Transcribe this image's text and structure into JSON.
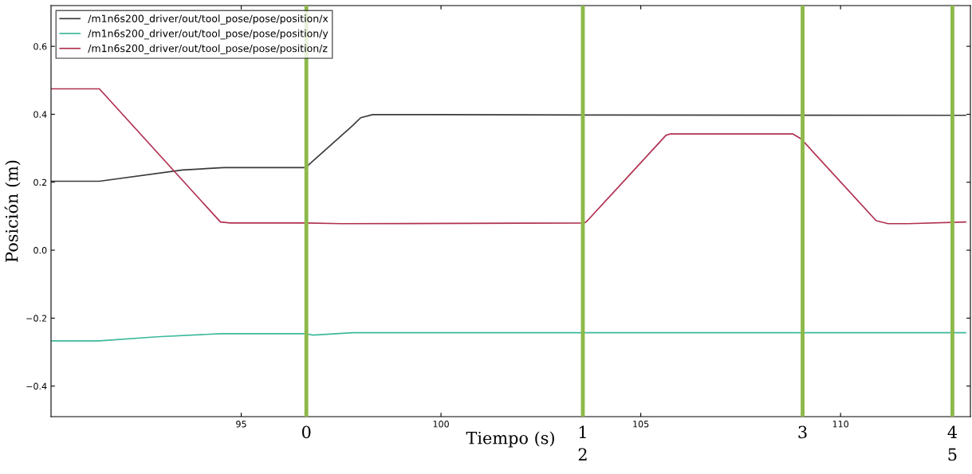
{
  "chart_data": {
    "type": "line",
    "xlabel": "Tiempo (s)",
    "ylabel": "Posición (m)",
    "xlim": [
      90.24,
      113.25
    ],
    "ylim": [
      -0.49,
      0.72
    ],
    "xticks": [
      95,
      100,
      105,
      110
    ],
    "yticks": [
      {
        "value": -0.4,
        "label": "−0.4"
      },
      {
        "value": -0.2,
        "label": "−0.2"
      },
      {
        "value": 0.0,
        "label": "0.0"
      },
      {
        "value": 0.2,
        "label": "0.2"
      },
      {
        "value": 0.4,
        "label": "0.4"
      },
      {
        "value": 0.6,
        "label": "0.6"
      }
    ],
    "legend": "top left",
    "grid": false,
    "series": [
      {
        "name": "/m1n6s200_driver/out/tool_pose/pose/position/x",
        "color": "#3a3a3a",
        "x": [
          90.26,
          91.45,
          93.53,
          94.56,
          96.61,
          97.8,
          97.99,
          98.29,
          99.88,
          103.65,
          113.13
        ],
        "values": [
          0.203,
          0.203,
          0.236,
          0.243,
          0.243,
          0.368,
          0.39,
          0.399,
          0.399,
          0.398,
          0.397
        ]
      },
      {
        "name": "/m1n6s200_driver/out/tool_pose/pose/position/y",
        "color": "#3cb99a",
        "x": [
          90.26,
          91.45,
          92.9,
          94.48,
          94.72,
          96.61,
          96.8,
          97.8,
          113.13
        ],
        "values": [
          -0.267,
          -0.267,
          -0.255,
          -0.246,
          -0.246,
          -0.246,
          -0.25,
          -0.243,
          -0.243
        ]
      },
      {
        "name": "/m1n6s200_driver/out/tool_pose/pose/position/z",
        "color": "#b03050",
        "x": [
          90.26,
          91.45,
          94.48,
          94.72,
          96.61,
          97.5,
          103.59,
          103.65,
          105.63,
          105.73,
          108.81,
          109.01,
          110.89,
          111.19,
          111.69,
          113.13
        ],
        "values": [
          0.475,
          0.475,
          0.083,
          0.08,
          0.08,
          0.078,
          0.08,
          0.085,
          0.338,
          0.342,
          0.342,
          0.328,
          0.087,
          0.078,
          0.078,
          0.083
        ]
      }
    ],
    "ref_lines": [
      {
        "axis": "x",
        "value": 96.63,
        "color": "#8db94a"
      },
      {
        "axis": "x",
        "value": 103.55,
        "color": "#8db94a"
      },
      {
        "axis": "x",
        "value": 109.05,
        "color": "#8db94a"
      },
      {
        "axis": "x",
        "value": 112.8,
        "color": "#8db94a"
      }
    ],
    "annotations": [
      "0",
      "1\n2",
      "3",
      "4\n5"
    ]
  }
}
